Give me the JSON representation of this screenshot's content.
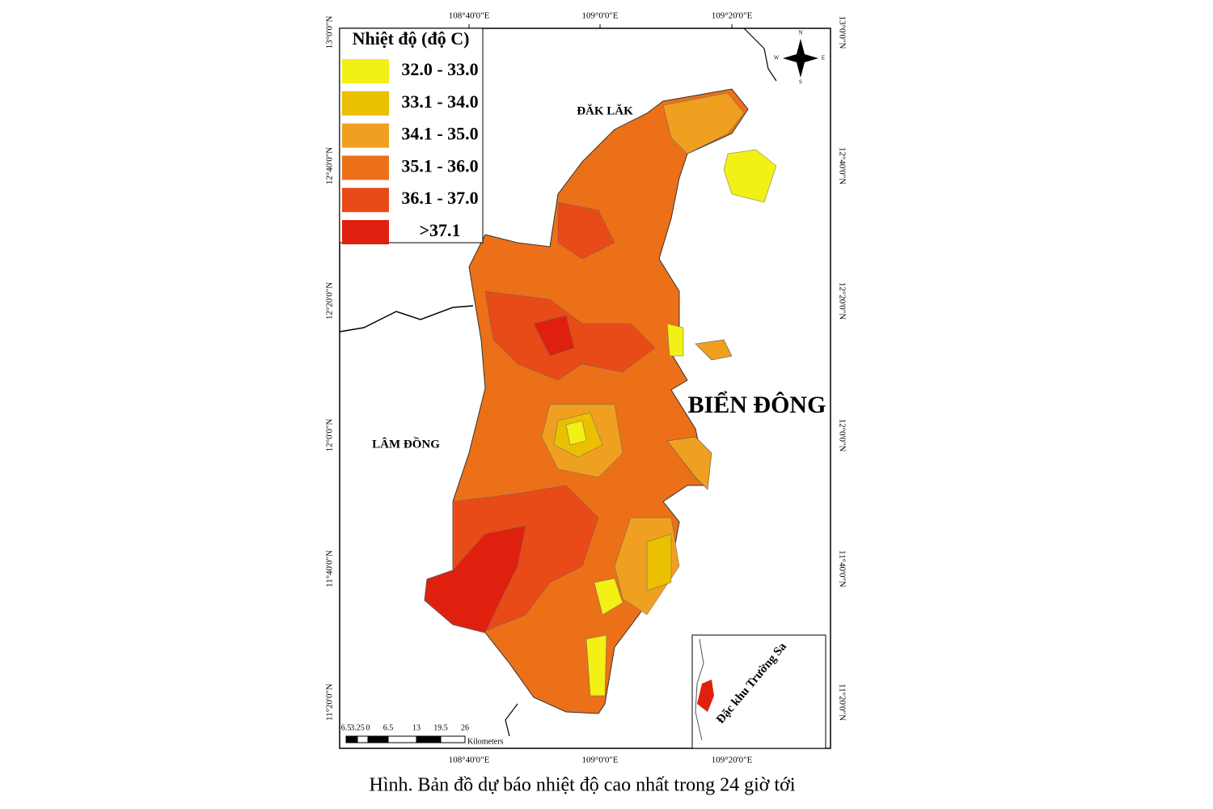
{
  "legend": {
    "title": "Nhiệt độ (độ C)",
    "items": [
      {
        "color": "#f2f014",
        "label": "32.0 - 33.0"
      },
      {
        "color": "#ebc000",
        "label": "33.1 - 34.0"
      },
      {
        "color": "#f0a020",
        "label": "34.1 - 35.0"
      },
      {
        "color": "#ec7018",
        "label": "35.1 - 36.0"
      },
      {
        "color": "#e84a18",
        "label": "36.1 - 37.0"
      },
      {
        "color": "#e0200e",
        "label": ">37.1"
      }
    ]
  },
  "regions": [
    "ĐĂK LĂK",
    "LÂM ĐỒNG",
    "BIỂN ĐÔNG"
  ],
  "coordinates": {
    "longitudes": [
      "108°40'0\"E",
      "109°0'0\"E",
      "109°20'0\"E"
    ],
    "latitudes": [
      "13°0'0\"N",
      "12°40'0\"N",
      "12°20'0\"N",
      "12°0'0\"N",
      "11°40'0\"N",
      "11°20'0\"N"
    ]
  },
  "compass": [
    "N",
    "E",
    "S",
    "W"
  ],
  "scale_bar": {
    "ticks": [
      "6.5",
      "3.25",
      "0",
      "6.5",
      "13",
      "19.5",
      "26"
    ],
    "unit": "Kilometers"
  },
  "inset": {
    "label": "Đặc khu Trường Sa"
  },
  "caption": "Hình. Bản đồ dự báo nhiệt độ cao nhất trong 24 giờ tới"
}
